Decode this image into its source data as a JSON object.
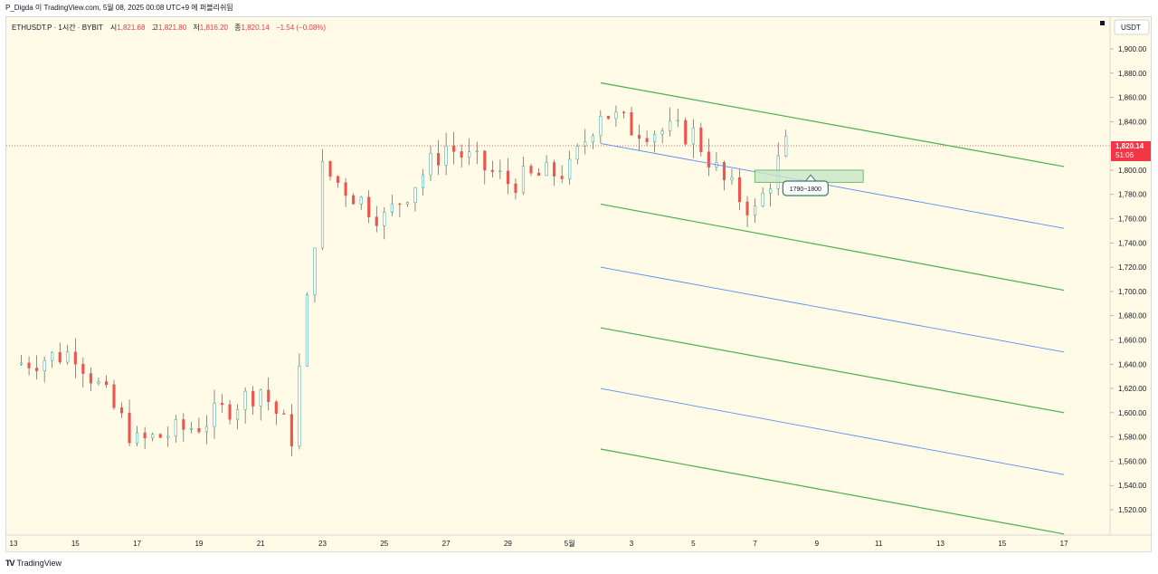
{
  "header": {
    "publish_text": "P_Digda 이 TradingView.com, 5월 08, 2025 00:08 UTC+9 에 퍼블리쉬됨"
  },
  "footer": {
    "logo_text": "TradingView"
  },
  "legend": {
    "symbol": "ETHUSDT.P · 1시간 · BYBIT",
    "open_label": "시",
    "open": "1,821.68",
    "high_label": "고",
    "high": "1,821.80",
    "low_label": "저",
    "low": "1,816.20",
    "close_label": "종",
    "close": "1,820.14",
    "change": "−1.54 (−0.08%)"
  },
  "price_axis": {
    "currency": "USDT",
    "current_price": "1,820.14",
    "countdown": "51:06",
    "ticks": [
      "1,900.00",
      "1,880.00",
      "1,860.00",
      "1,840.00",
      "1,820.00",
      "1,800.00",
      "1,780.00",
      "1,760.00",
      "1,740.00",
      "1,720.00",
      "1,700.00",
      "1,680.00",
      "1,660.00",
      "1,640.00",
      "1,620.00",
      "1,600.00",
      "1,580.00",
      "1,560.00",
      "1,540.00",
      "1,520.00"
    ]
  },
  "time_axis": {
    "ticks": [
      "13",
      "15",
      "17",
      "19",
      "21",
      "23",
      "25",
      "27",
      "29",
      "5월",
      "3",
      "5",
      "7",
      "9",
      "11",
      "13",
      "15",
      "17"
    ]
  },
  "annotation": {
    "label": "1790~1800"
  },
  "colors": {
    "background": "#fffbe6",
    "up": "#26a69a",
    "down": "#ef5350",
    "channel_green": "#4caf50",
    "channel_blue": "#5b8def",
    "price_tag": "#f23645"
  },
  "chart_data": {
    "type": "candlestick",
    "ylim": [
      1510,
      1915
    ],
    "x_ticks": [
      "13",
      "15",
      "17",
      "19",
      "21",
      "23",
      "25",
      "27",
      "29",
      "5월",
      "3",
      "5",
      "7",
      "9",
      "11",
      "13",
      "15",
      "17"
    ],
    "price_path_approx": [
      {
        "x": "13",
        "price": 1640
      },
      {
        "x": "15",
        "price": 1650
      },
      {
        "x": "17",
        "price": 1575
      },
      {
        "x": "19",
        "price": 1590
      },
      {
        "x": "21",
        "price": 1620
      },
      {
        "x": "22",
        "price": 1580
      },
      {
        "x": "23",
        "price": 1800
      },
      {
        "x": "25",
        "price": 1760
      },
      {
        "x": "27",
        "price": 1820
      },
      {
        "x": "29",
        "price": 1790
      },
      {
        "x": "5월",
        "price": 1800
      },
      {
        "x": "2",
        "price": 1850
      },
      {
        "x": "3",
        "price": 1835
      },
      {
        "x": "5",
        "price": 1830
      },
      {
        "x": "6",
        "price": 1790
      },
      {
        "x": "7",
        "price": 1765
      },
      {
        "x": "8",
        "price": 1820
      }
    ],
    "last_close": 1820.14,
    "zone": {
      "label": "1790~1800",
      "low": 1790,
      "high": 1800
    },
    "channel_lines": [
      {
        "color": "green",
        "from": {
          "x": "2",
          "price": 1872
        },
        "to": {
          "x": "17",
          "price": 1803
        }
      },
      {
        "color": "blue",
        "from": {
          "x": "2",
          "price": 1822
        },
        "to": {
          "x": "17",
          "price": 1752
        }
      },
      {
        "color": "green",
        "from": {
          "x": "2",
          "price": 1772
        },
        "to": {
          "x": "17",
          "price": 1701
        }
      },
      {
        "color": "blue",
        "from": {
          "x": "2",
          "price": 1720
        },
        "to": {
          "x": "17",
          "price": 1650
        }
      },
      {
        "color": "green",
        "from": {
          "x": "2",
          "price": 1670
        },
        "to": {
          "x": "17",
          "price": 1600
        }
      },
      {
        "color": "blue",
        "from": {
          "x": "2",
          "price": 1620
        },
        "to": {
          "x": "17",
          "price": 1549
        }
      },
      {
        "color": "green",
        "from": {
          "x": "2",
          "price": 1570
        },
        "to": {
          "x": "17",
          "price": 1500
        }
      }
    ]
  }
}
